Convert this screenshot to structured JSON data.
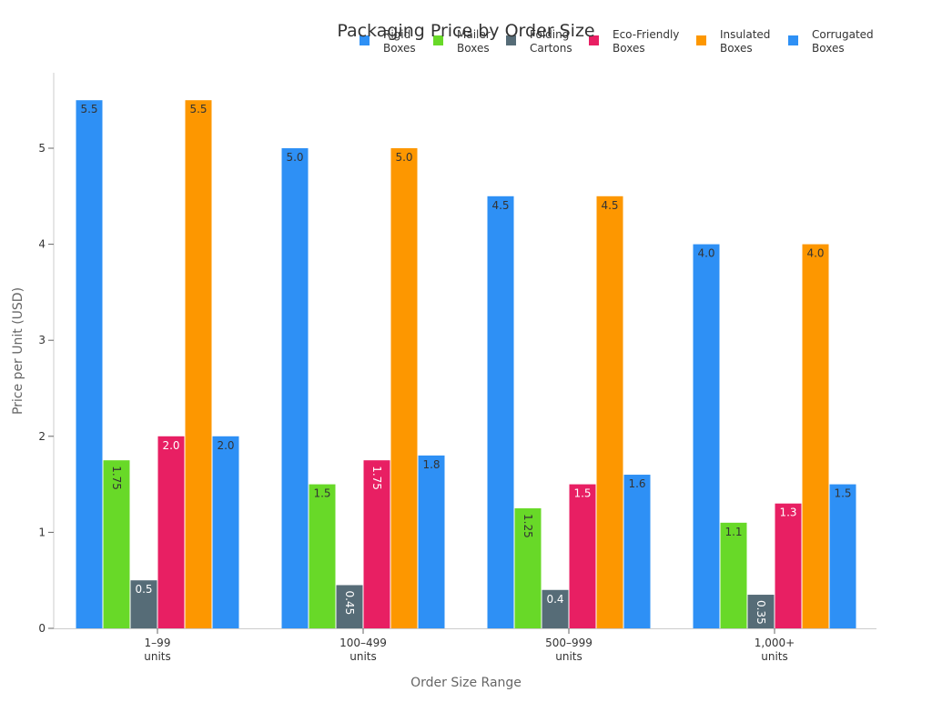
{
  "chart_data": {
    "type": "bar",
    "title": "Packaging Price by Order Size",
    "xlabel": "Order Size Range",
    "ylabel": "Price per Unit (USD)",
    "ylim": [
      0,
      5.78
    ],
    "yticks": [
      0,
      1,
      2,
      3,
      4,
      5
    ],
    "grid": false,
    "legend_position": "top-right",
    "categories": [
      [
        "1–99",
        "units"
      ],
      [
        "100–499",
        "units"
      ],
      [
        "500–999",
        "units"
      ],
      [
        "1,000+",
        "units"
      ]
    ],
    "series": [
      {
        "name": [
          "Rigid",
          "Boxes"
        ],
        "color": "#2e90f5",
        "values": [
          5.5,
          5.0,
          4.5,
          4.0
        ],
        "labels": [
          "5.5",
          "5.0",
          "4.5",
          "4.0"
        ],
        "label_style": "dark",
        "rotate_labels": false
      },
      {
        "name": [
          "Mailer",
          "Boxes"
        ],
        "color": "#68d928",
        "values": [
          1.75,
          1.5,
          1.25,
          1.1
        ],
        "labels": [
          "1.75",
          "1.5",
          "1.25",
          "1.1"
        ],
        "label_style": "dark",
        "rotate_labels": "auto"
      },
      {
        "name": [
          "Folding",
          "Cartons"
        ],
        "color": "#566c77",
        "values": [
          0.5,
          0.45,
          0.4,
          0.35
        ],
        "labels": [
          "0.5",
          "0.45",
          "0.4",
          "0.35"
        ],
        "label_style": "light",
        "rotate_labels": "auto"
      },
      {
        "name": [
          "Eco-Friendly",
          "Boxes"
        ],
        "color": "#e81f63",
        "values": [
          2.0,
          1.75,
          1.5,
          1.3
        ],
        "labels": [
          "2.0",
          "1.75",
          "1.5",
          "1.3"
        ],
        "label_style": "light",
        "rotate_labels": "auto"
      },
      {
        "name": [
          "Insulated",
          "Boxes"
        ],
        "color": "#fd9700",
        "values": [
          5.5,
          5.0,
          4.5,
          4.0
        ],
        "labels": [
          "5.5",
          "5.0",
          "4.5",
          "4.0"
        ],
        "label_style": "dark",
        "rotate_labels": false
      },
      {
        "name": [
          "Corrugated",
          "Boxes"
        ],
        "color": "#2e90f5",
        "values": [
          2.0,
          1.8,
          1.6,
          1.5
        ],
        "labels": [
          "2.0",
          "1.8",
          "1.6",
          "1.5"
        ],
        "label_style": "dark",
        "rotate_labels": false
      }
    ]
  }
}
